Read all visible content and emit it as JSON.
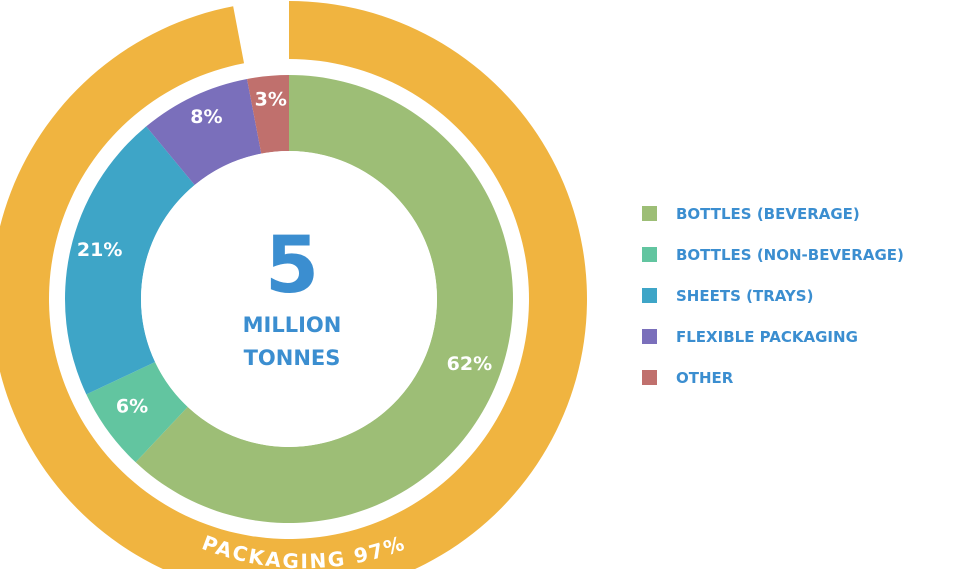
{
  "chart_data": {
    "type": "pie",
    "style": "donut",
    "categories": [
      "BOTTLES (BEVERAGE)",
      "BOTTLES (NON-BEVERAGE)",
      "SHEETS (TRAYS)",
      "FLEXIBLE PACKAGING",
      "OTHER"
    ],
    "values": [
      62,
      6,
      21,
      8,
      3
    ],
    "value_labels": [
      "62%",
      "6%",
      "21%",
      "8%",
      "3%"
    ],
    "colors": [
      "#9dbe76",
      "#62c5a0",
      "#3ea5c7",
      "#7a6fbb",
      "#c0706d"
    ],
    "center": {
      "number": "5",
      "line1": "MILLION",
      "line2": "TONNES"
    },
    "outer_ring": {
      "label": "PACKAGING 97%",
      "value": 97,
      "color": "#f0b440"
    },
    "legend_position": "right"
  }
}
